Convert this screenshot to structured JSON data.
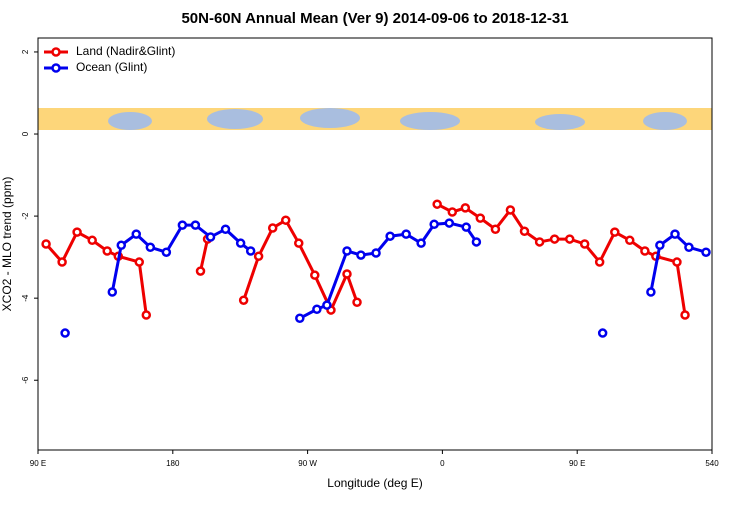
{
  "chart_data": {
    "type": "line",
    "title": "50N-60N Annual Mean (Ver 9)   2014-09-06 to 2018-12-31",
    "x_label": "Longitude (deg E)",
    "y_label": "XCO2 - MLO trend (ppm)",
    "xlim": [
      90,
      540
    ],
    "ylim": [
      -7.7,
      2.34
    ],
    "xticks": [
      {
        "value": 90,
        "label": "90 E"
      },
      180,
      {
        "value": 270,
        "label": "90 W"
      },
      {
        "value": 360,
        "label": "0"
      },
      {
        "value": 450,
        "label": "90 E"
      },
      540
    ],
    "yticks": [
      -6,
      -4,
      -2,
      0,
      2
    ],
    "legend": "top-left",
    "series": [
      {
        "name": "Land (Nadir&Glint)",
        "color": "#ee0000",
        "x": [
          95.4,
          106.1,
          116.1,
          126.2,
          136.2,
          143.6,
          157.6,
          162.3,
          null,
          198.5,
          203.2,
          null,
          227.3,
          237.3,
          246.7,
          255.4,
          264.1,
          274.8,
          285.6,
          296.3,
          303,
          null,
          356.5,
          366.6,
          375.3,
          385.3,
          395.4,
          405.4,
          414.8,
          424.9,
          434.9,
          445,
          455,
          465,
          475.1,
          485.1,
          495.2,
          502.5,
          516.6,
          522
        ],
        "values": [
          -2.68,
          -3.12,
          -2.39,
          -2.59,
          -2.85,
          -2.98,
          -3.12,
          -4.41,
          null,
          -3.34,
          -2.56,
          null,
          -4.05,
          -2.98,
          -2.29,
          -2.1,
          -2.66,
          -3.44,
          -4.29,
          -3.41,
          -4.1,
          null,
          -1.71,
          -1.9,
          -1.8,
          -2.05,
          -2.32,
          -1.85,
          -2.37,
          -2.63,
          -2.56,
          -2.56,
          -2.68,
          -3.12,
          -2.39,
          -2.59,
          -2.85,
          -2.98,
          -3.12,
          -4.41
        ]
      },
      {
        "name": "Ocean (Glint)",
        "color": "#0000ee",
        "x": [
          108.1,
          null,
          139.6,
          145.6,
          155.6,
          165,
          175.7,
          186.4,
          195.1,
          205.2,
          215.2,
          225.3,
          232,
          null,
          264.8,
          276.2,
          282.9,
          296.3,
          305.6,
          315.7,
          325.1,
          335.8,
          345.8,
          354.5,
          364.6,
          375.9,
          382.7,
          null,
          467,
          null,
          499.2,
          505.2,
          515.3,
          524.6,
          536
        ],
        "values": [
          -4.85,
          null,
          -3.85,
          -2.71,
          -2.44,
          -2.76,
          -2.88,
          -2.22,
          -2.22,
          -2.51,
          -2.32,
          -2.66,
          -2.85,
          null,
          -4.49,
          -4.27,
          -4.17,
          -2.85,
          -2.95,
          -2.9,
          -2.49,
          -2.44,
          -2.66,
          -2.2,
          -2.17,
          -2.27,
          -2.63,
          null,
          -4.85,
          null,
          -3.85,
          -2.71,
          -2.44,
          -2.76,
          -2.88
        ]
      }
    ]
  }
}
